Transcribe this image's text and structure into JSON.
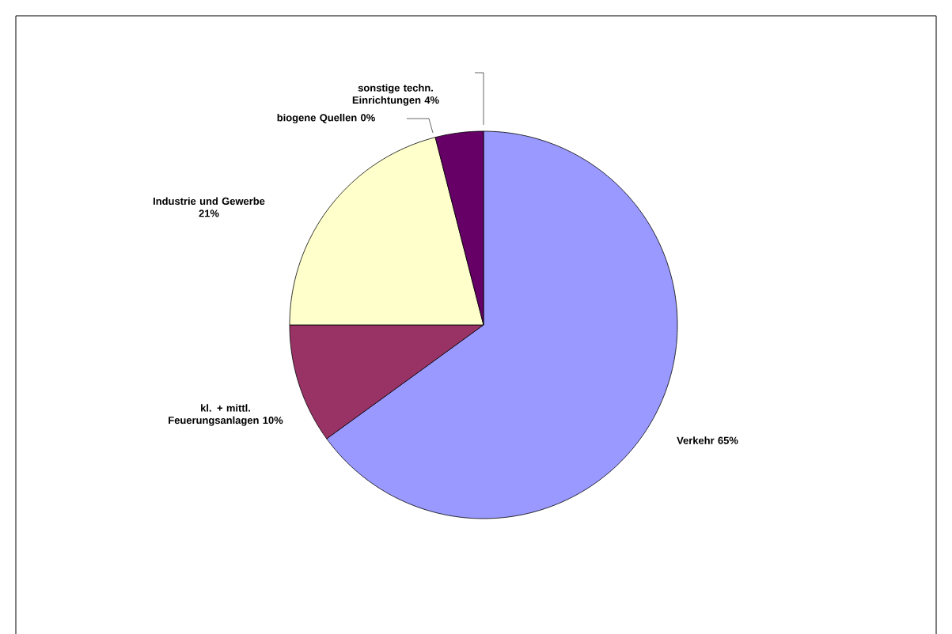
{
  "chart_data": {
    "type": "pie",
    "categories": [
      "Verkehr",
      "kl. + mittl. Feuerungsanlagen",
      "Industrie und Gewerbe",
      "biogene Quellen",
      "sonstige techn. Einrichtungen"
    ],
    "values": [
      65,
      10,
      21,
      0,
      4
    ],
    "value_labels": [
      "65%",
      "10%",
      "21%",
      "0%",
      "4%"
    ],
    "colors": [
      "#9999ff",
      "#993366",
      "#ffffcc",
      "#ccffff",
      "#660066"
    ]
  }
}
